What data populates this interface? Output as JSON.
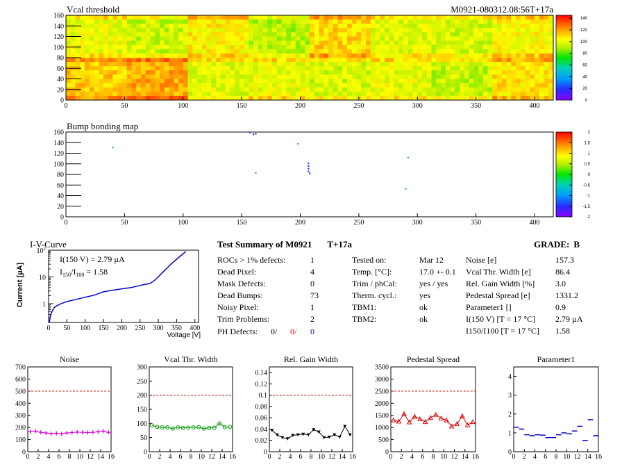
{
  "header": {
    "title": "Vcal threshold",
    "run_id": "M0921-080312.08:56T+17a"
  },
  "bump_map": {
    "title": "Bump bonding map"
  },
  "iv": {
    "title": "I-V-Curve",
    "annot1": "I(150 V) = 2.79 µA",
    "annot2_prefix": "I",
    "annot2_sub1": "150",
    "annot2_mid": "/I",
    "annot2_sub2": "100",
    "annot2_suffix": " =  1.58",
    "ylabel": "Current [µA]",
    "xlabel": "Voltage [V]"
  },
  "summary": {
    "heading": "Test Summary of M0921",
    "tag": "T+17a",
    "grade_label": "GRADE:",
    "grade": "B",
    "col1": [
      {
        "label": "ROCs > 1% defects:",
        "value": "1"
      },
      {
        "label": "Dead Pixel:",
        "value": "4"
      },
      {
        "label": "Mask Defects:",
        "value": "0"
      },
      {
        "label": "Dead Bumps:",
        "value": "73"
      },
      {
        "label": "Noisy Pixel:",
        "value": "1"
      },
      {
        "label": "Trim Problems:",
        "value": "2"
      }
    ],
    "ph_defects": {
      "label": "PH Defects:",
      "v1": "0/",
      "v2": "0/",
      "v3": "0"
    },
    "col2": [
      {
        "label": "Tested on:",
        "value": "Mar 12"
      },
      {
        "label": "Temp. [°C]:",
        "value": "17.0 +- 0.1"
      },
      {
        "label": "Trim / phCal:",
        "value": "yes / yes"
      },
      {
        "label": "Therm. cycl.:",
        "value": "yes"
      },
      {
        "label": "TBM1:",
        "value": "ok"
      },
      {
        "label": "TBM2:",
        "value": "ok"
      }
    ],
    "col3": [
      {
        "label": "Noise [e]",
        "value": "157.3"
      },
      {
        "label": "Vcal Thr. Width [e]",
        "value": "86.4"
      },
      {
        "label": "Rel. Gain Width [%]",
        "value": "3.0"
      },
      {
        "label": "Pedestal Spread [e]",
        "value": "1331.2"
      },
      {
        "label": "Parameter1 []",
        "value": "0.9"
      },
      {
        "label": "I(150 V) [T = 17 °C]",
        "value": "2.79 µA"
      },
      {
        "label": "I150/I100  [T = 17 °C]",
        "value": "1.58"
      }
    ]
  },
  "chart_data": [
    {
      "type": "heatmap",
      "title": "Vcal threshold",
      "x_ticks": [
        0,
        50,
        100,
        150,
        200,
        250,
        300,
        350,
        400
      ],
      "y_ticks": [
        0,
        20,
        40,
        60,
        80,
        100,
        120,
        140,
        160
      ],
      "xlim": [
        0,
        416
      ],
      "ylim": [
        0,
        160
      ],
      "z_ticks": [
        0,
        20,
        40,
        60,
        80,
        100,
        120,
        140
      ],
      "zlim": [
        0,
        145
      ],
      "roc_means": {
        "top": [
          100,
          95,
          105,
          92,
          110,
          98,
          96,
          104
        ],
        "bottom": [
          112,
          118,
          98,
          100,
          96,
          100,
          94,
          108
        ]
      }
    },
    {
      "type": "heatmap",
      "title": "Bump bonding map",
      "x_ticks": [
        0,
        50,
        100,
        150,
        200,
        250,
        300,
        350,
        400
      ],
      "y_ticks": [
        0,
        20,
        40,
        60,
        80,
        100,
        120,
        140,
        160
      ],
      "xlim": [
        0,
        416
      ],
      "ylim": [
        0,
        160
      ],
      "z_ticks": [
        -2,
        -1.5,
        -1,
        -0.5,
        0,
        0.5,
        1,
        1.5,
        2
      ],
      "zlim": [
        -2,
        2
      ],
      "points": [
        {
          "x": 157,
          "y": 159
        },
        {
          "x": 160,
          "y": 156
        },
        {
          "x": 162,
          "y": 157
        },
        {
          "x": 207,
          "y": 101
        },
        {
          "x": 207,
          "y": 96
        },
        {
          "x": 207,
          "y": 91
        },
        {
          "x": 207,
          "y": 86
        },
        {
          "x": 208,
          "y": 82
        },
        {
          "x": 198,
          "y": 138
        },
        {
          "x": 40,
          "y": 131
        },
        {
          "x": 162,
          "y": 83
        },
        {
          "x": 292,
          "y": 112
        },
        {
          "x": 290,
          "y": 53
        }
      ]
    },
    {
      "type": "line",
      "title": "I-V-Curve",
      "xlabel": "Voltage [V]",
      "ylabel": "Current [µA]",
      "log_y": true,
      "xlim": [
        0,
        410
      ],
      "ylim": [
        0.2,
        100
      ],
      "x_ticks": [
        0,
        50,
        100,
        150,
        200,
        250,
        300,
        350,
        400
      ],
      "x": [
        2,
        5,
        10,
        15,
        20,
        30,
        40,
        50,
        75,
        100,
        125,
        150,
        175,
        200,
        225,
        250,
        260,
        270,
        280,
        290,
        300,
        310,
        320,
        330,
        340,
        350,
        360,
        370,
        375
      ],
      "y": [
        0.2,
        0.35,
        0.55,
        0.7,
        0.8,
        0.95,
        1.08,
        1.2,
        1.45,
        1.75,
        2.1,
        2.79,
        3.2,
        3.6,
        4.0,
        4.8,
        5.2,
        5.4,
        6.0,
        7.5,
        10,
        14,
        19,
        26,
        35,
        46,
        60,
        78,
        90
      ]
    },
    {
      "type": "scatter",
      "title": "Noise",
      "xlim": [
        0,
        16
      ],
      "ylim": [
        0,
        700
      ],
      "x_ticks": [
        0,
        2,
        4,
        6,
        8,
        10,
        12,
        14,
        16
      ],
      "y_ticks": [
        0,
        100,
        200,
        300,
        400,
        500,
        600,
        700
      ],
      "x": [
        0,
        1,
        2,
        3,
        4,
        5,
        6,
        7,
        8,
        9,
        10,
        11,
        12,
        13,
        14,
        15
      ],
      "values": [
        165,
        170,
        160,
        155,
        150,
        152,
        148,
        155,
        158,
        162,
        160,
        158,
        160,
        165,
        170,
        160
      ],
      "limit": 500,
      "color": "#d400d4",
      "marker": "cross"
    },
    {
      "type": "scatter",
      "title": "Vcal Thr. Width",
      "xlim": [
        0,
        16
      ],
      "ylim": [
        0,
        300
      ],
      "x_ticks": [
        0,
        2,
        4,
        6,
        8,
        10,
        12,
        14,
        16
      ],
      "y_ticks": [
        0,
        50,
        100,
        150,
        200,
        250,
        300
      ],
      "x": [
        0,
        1,
        2,
        3,
        4,
        5,
        6,
        7,
        8,
        9,
        10,
        11,
        12,
        13,
        14,
        15
      ],
      "values": [
        93,
        88,
        86,
        86,
        82,
        86,
        84,
        85,
        86,
        87,
        82,
        84,
        85,
        100,
        87,
        88
      ],
      "limit": 200,
      "color": "#009900",
      "marker": "circle"
    },
    {
      "type": "scatter",
      "title": "Rel. Gain Width",
      "xlim": [
        0,
        16
      ],
      "ylim": [
        0,
        0.15
      ],
      "x_ticks": [
        0,
        2,
        4,
        6,
        8,
        10,
        12,
        14,
        16
      ],
      "y_ticks": [
        0,
        0.02,
        0.04,
        0.06,
        0.08,
        0.1,
        0.12,
        0.14
      ],
      "x": [
        0,
        1,
        2,
        3,
        4,
        5,
        6,
        7,
        8,
        9,
        10,
        11,
        12,
        13,
        14,
        15
      ],
      "values": [
        0.038,
        0.03,
        0.025,
        0.023,
        0.029,
        0.03,
        0.031,
        0.03,
        0.039,
        0.035,
        0.025,
        0.026,
        0.03,
        0.026,
        0.045,
        0.03
      ],
      "limit": 0.1,
      "color": "#000000",
      "marker": "triangle-down"
    },
    {
      "type": "scatter",
      "title": "Pedestal Spread",
      "xlim": [
        0,
        16
      ],
      "ylim": [
        0,
        3500
      ],
      "x_ticks": [
        0,
        2,
        4,
        6,
        8,
        10,
        12,
        14,
        16
      ],
      "y_ticks": [
        0,
        500,
        1000,
        1500,
        2000,
        2500,
        3000,
        3500
      ],
      "x": [
        0,
        1,
        2,
        3,
        4,
        5,
        6,
        7,
        8,
        9,
        10,
        11,
        12,
        13,
        14,
        15
      ],
      "values": [
        1300,
        1250,
        1560,
        1220,
        1450,
        1350,
        1230,
        1400,
        1530,
        1380,
        1300,
        1050,
        1150,
        1470,
        1100,
        1230
      ],
      "limit": 2500,
      "color": "#dd0000",
      "marker": "triangle-up"
    },
    {
      "type": "scatter",
      "title": "Parameter1",
      "xlim": [
        0,
        16
      ],
      "ylim": [
        0,
        4.5
      ],
      "x_ticks": [
        0,
        2,
        4,
        6,
        8,
        10,
        12,
        14,
        16
      ],
      "y_ticks": [
        0,
        1,
        2,
        3,
        4
      ],
      "x": [
        0,
        1,
        2,
        3,
        4,
        5,
        6,
        7,
        8,
        9,
        10,
        11,
        12,
        13,
        14,
        15
      ],
      "values": [
        1.3,
        1.2,
        0.9,
        0.85,
        0.9,
        0.88,
        0.75,
        0.75,
        0.9,
        1.0,
        0.95,
        1.1,
        1.35,
        0.6,
        1.7,
        0.85
      ],
      "color": "#0000cc",
      "marker": "dash"
    }
  ]
}
